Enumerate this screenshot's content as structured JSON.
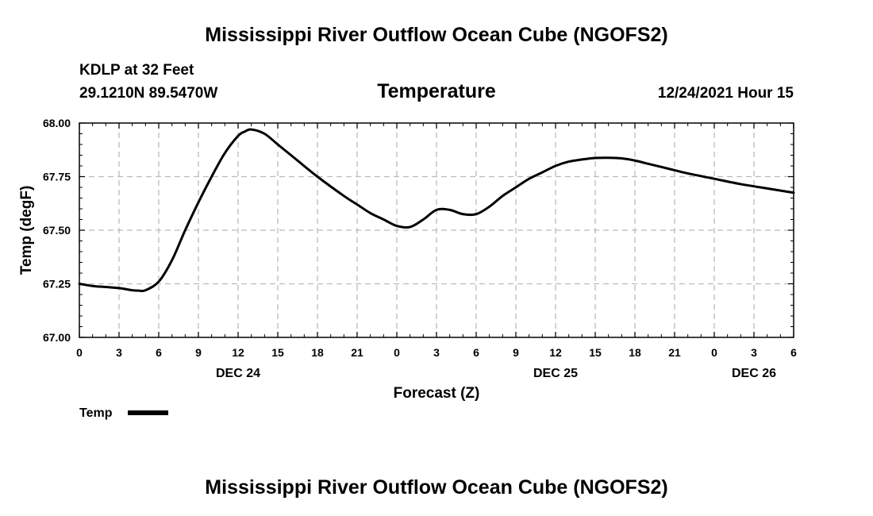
{
  "page": {
    "title": "Mississippi River Outflow Ocean Cube (NGOFS2)",
    "footer_title": "Mississippi River Outflow Ocean Cube (NGOFS2)",
    "station": "KDLP at 32 Feet",
    "coords": "29.1210N  89.5470W",
    "subtitle": "Temperature",
    "run_time": "12/24/2021 Hour 15"
  },
  "chart_data": {
    "type": "line",
    "title": "Temperature",
    "xlabel": "Forecast (Z)",
    "ylabel": "Temp (degF)",
    "xlim": [
      0,
      54
    ],
    "ylim": [
      67.0,
      68.0
    ],
    "grid": true,
    "x_ticks": [
      {
        "h": 0,
        "label": "0"
      },
      {
        "h": 3,
        "label": "3"
      },
      {
        "h": 6,
        "label": "6"
      },
      {
        "h": 9,
        "label": "9"
      },
      {
        "h": 12,
        "label": "12"
      },
      {
        "h": 15,
        "label": "15"
      },
      {
        "h": 18,
        "label": "18"
      },
      {
        "h": 21,
        "label": "21"
      },
      {
        "h": 24,
        "label": "0"
      },
      {
        "h": 27,
        "label": "3"
      },
      {
        "h": 30,
        "label": "6"
      },
      {
        "h": 33,
        "label": "9"
      },
      {
        "h": 36,
        "label": "12"
      },
      {
        "h": 39,
        "label": "15"
      },
      {
        "h": 42,
        "label": "18"
      },
      {
        "h": 45,
        "label": "21"
      },
      {
        "h": 48,
        "label": "0"
      },
      {
        "h": 51,
        "label": "3"
      },
      {
        "h": 54,
        "label": "6"
      }
    ],
    "y_ticks": [
      {
        "v": 67.0,
        "label": "67.00"
      },
      {
        "v": 67.25,
        "label": "67.25"
      },
      {
        "v": 67.5,
        "label": "67.50"
      },
      {
        "v": 67.75,
        "label": "67.75"
      },
      {
        "v": 68.0,
        "label": "68.00"
      }
    ],
    "date_labels": [
      {
        "h": 12,
        "label": "DEC 24"
      },
      {
        "h": 36,
        "label": "DEC 25"
      },
      {
        "h": 51,
        "label": "DEC 26"
      }
    ],
    "legend": {
      "label": "Temp",
      "position": "bottom-left"
    },
    "series": [
      {
        "name": "Temp",
        "color": "#000000",
        "x": [
          0,
          1,
          2,
          3,
          4,
          4.5,
          5,
          6,
          7,
          8,
          9,
          10,
          11,
          12,
          12.5,
          13,
          14,
          15,
          16,
          18,
          20,
          21,
          22,
          23,
          24,
          25,
          26,
          27,
          28,
          29,
          30,
          31,
          32,
          33,
          34,
          35,
          36,
          37,
          38,
          39,
          40,
          41,
          42,
          43,
          44,
          45,
          46,
          48,
          50,
          52,
          54
        ],
        "values": [
          67.25,
          67.24,
          67.235,
          67.23,
          67.22,
          67.218,
          67.22,
          67.26,
          67.36,
          67.5,
          67.63,
          67.75,
          67.86,
          67.94,
          67.96,
          67.97,
          67.95,
          67.9,
          67.85,
          67.75,
          67.66,
          67.62,
          67.58,
          67.55,
          67.52,
          67.515,
          67.55,
          67.595,
          67.595,
          67.575,
          67.575,
          67.61,
          67.66,
          67.7,
          67.74,
          67.77,
          67.8,
          67.82,
          67.83,
          67.837,
          67.838,
          67.835,
          67.825,
          67.81,
          67.795,
          67.78,
          67.765,
          67.74,
          67.715,
          67.695,
          67.675
        ]
      }
    ]
  }
}
